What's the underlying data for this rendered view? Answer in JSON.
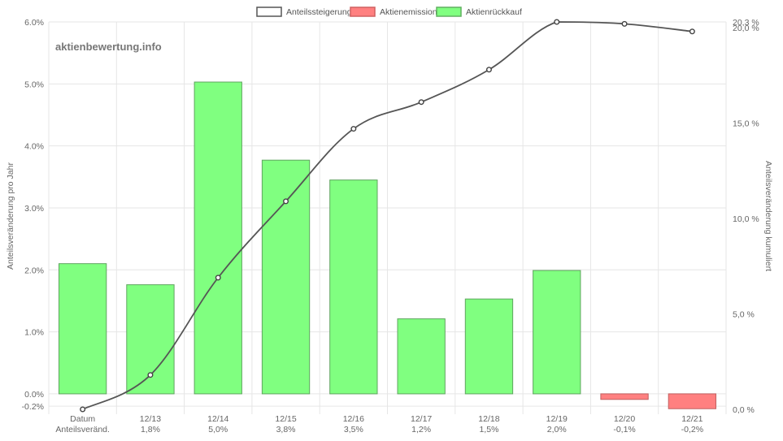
{
  "watermark": "aktienbewertung.info",
  "chart_data": {
    "type": "bar",
    "legend": {
      "position": "top",
      "entries": [
        {
          "name": "Anteilssteigerung",
          "color": "#ffffff",
          "border": "#555555"
        },
        {
          "name": "Aktienemission",
          "color": "#ff8080",
          "border": "#d06060"
        },
        {
          "name": "Aktienrückkauf",
          "color": "#80ff80",
          "border": "#60b060"
        }
      ]
    },
    "categories": [
      {
        "label": "Datum",
        "sub": "Anteilsveränd."
      },
      {
        "label": "12/13",
        "sub": "1,8%"
      },
      {
        "label": "12/14",
        "sub": "5,0%"
      },
      {
        "label": "12/15",
        "sub": "3,8%"
      },
      {
        "label": "12/16",
        "sub": "3,5%"
      },
      {
        "label": "12/17",
        "sub": "1,2%"
      },
      {
        "label": "12/18",
        "sub": "1,5%"
      },
      {
        "label": "12/19",
        "sub": "2,0%"
      },
      {
        "label": "12/20",
        "sub": "-0,1%"
      },
      {
        "label": "12/21",
        "sub": "-0,2%"
      }
    ],
    "bars": [
      2.1,
      1.76,
      5.03,
      3.77,
      3.45,
      1.21,
      1.53,
      1.99,
      -0.09,
      -0.24
    ],
    "line": [
      0.0,
      1.8,
      6.9,
      10.9,
      14.7,
      16.1,
      17.8,
      20.3,
      20.2,
      19.8
    ],
    "y_left": {
      "label": "Anteilsveränderung pro Jahr",
      "min": -0.25,
      "max": 6.0,
      "ticks": [
        {
          "v": 6.0,
          "t": "6.0%"
        },
        {
          "v": 5.0,
          "t": "5.0%"
        },
        {
          "v": 4.0,
          "t": "4.0%"
        },
        {
          "v": 3.0,
          "t": "3.0%"
        },
        {
          "v": 2.0,
          "t": "2.0%"
        },
        {
          "v": 1.0,
          "t": "1.0%"
        },
        {
          "v": 0.0,
          "t": "0.0%"
        },
        {
          "v": -0.2,
          "t": "-0.2%"
        }
      ]
    },
    "y_right": {
      "label": "Anteilsveränderung kumuliert",
      "min": 0.0,
      "max": 20.3,
      "ticks": [
        {
          "v": 20.3,
          "t": "20,3 %"
        },
        {
          "v": 20.0,
          "t": "20,0 %"
        },
        {
          "v": 15.0,
          "t": "15,0 %"
        },
        {
          "v": 10.0,
          "t": "10,0 %"
        },
        {
          "v": 5.0,
          "t": "5,0 %"
        },
        {
          "v": 0.0,
          "t": "0,0 %"
        }
      ]
    },
    "grid": true
  }
}
